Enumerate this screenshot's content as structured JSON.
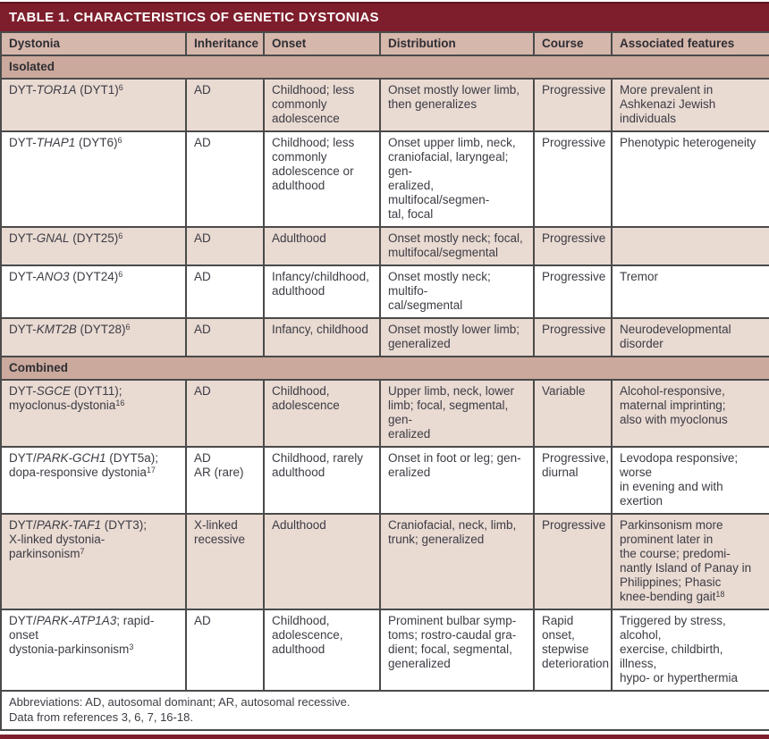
{
  "title": "TABLE 1. CHARACTERISTICS OF GENETIC DYSTONIAS",
  "colors": {
    "title_bg": "#7E1E2C",
    "header_bg": "#D6B7AC",
    "section_bg": "#CBA99C",
    "row_shaded_bg": "#E9DAD2",
    "row_plain_bg": "#FFFFFF",
    "border": "#4A4A4A",
    "text": "#3C3C44"
  },
  "table": {
    "columns": [
      "Dystonia",
      "Inheritance",
      "Onset",
      "Distribution",
      "Course",
      "Associated features"
    ],
    "sections": [
      {
        "label": "Isolated",
        "rows": [
          {
            "name_parts": [
              {
                "t": "DYT-"
              },
              {
                "t": "TOR1A",
                "style": "italic"
              },
              {
                "t": " (DYT1)"
              },
              {
                "t": "6",
                "style": "sup"
              }
            ],
            "inheritance": "AD",
            "onset": "Childhood; less\ncommonly\nadolescence",
            "distribution": "Onset mostly lower limb,\nthen generalizes",
            "course": "Progressive",
            "features": "More prevalent in\nAshkenazi Jewish individuals"
          },
          {
            "name_parts": [
              {
                "t": "DYT-"
              },
              {
                "t": "THAP1",
                "style": "italic"
              },
              {
                "t": " (DYT6)"
              },
              {
                "t": "6",
                "style": "sup"
              }
            ],
            "inheritance": "AD",
            "onset": "Childhood; less\ncommonly\nadolescence or\nadulthood",
            "distribution": "Onset upper limb, neck,\ncraniofacial, laryngeal; gen-\neralized, multifocal/segmen-\ntal, focal",
            "course": "Progressive",
            "features": "Phenotypic heterogeneity"
          },
          {
            "name_parts": [
              {
                "t": "DYT-"
              },
              {
                "t": "GNAL",
                "style": "italic"
              },
              {
                "t": " (DYT25)"
              },
              {
                "t": "6",
                "style": "sup"
              }
            ],
            "inheritance": "AD",
            "onset": "Adulthood",
            "distribution": "Onset mostly neck; focal,\nmultifocal/segmental",
            "course": "Progressive",
            "features": ""
          },
          {
            "name_parts": [
              {
                "t": "DYT-"
              },
              {
                "t": "ANO3",
                "style": "italic"
              },
              {
                "t": " (DYT24)"
              },
              {
                "t": "6",
                "style": "sup"
              }
            ],
            "inheritance": "AD",
            "onset": "Infancy/childhood,\nadulthood",
            "distribution": "Onset mostly neck; multifo-\ncal/segmental",
            "course": "Progressive",
            "features": "Tremor"
          },
          {
            "name_parts": [
              {
                "t": "DYT-"
              },
              {
                "t": "KMT2B",
                "style": "italic"
              },
              {
                "t": " (DYT28)"
              },
              {
                "t": "6",
                "style": "sup"
              }
            ],
            "inheritance": "AD",
            "onset": "Infancy, childhood",
            "distribution": "Onset mostly lower limb;\ngeneralized",
            "course": "Progressive",
            "features": "Neurodevelopmental\ndisorder"
          }
        ]
      },
      {
        "label": "Combined",
        "rows": [
          {
            "name_parts": [
              {
                "t": "DYT-"
              },
              {
                "t": "SGCE",
                "style": "italic"
              },
              {
                "t": " (DYT11);"
              },
              {
                "style": "br"
              },
              {
                "t": "myoclonus-dystonia"
              },
              {
                "t": "16",
                "style": "sup"
              }
            ],
            "inheritance": "AD",
            "onset": "Childhood,\nadolescence",
            "distribution": "Upper limb, neck, lower\nlimb; focal, segmental, gen-\neralized",
            "course": "Variable",
            "features": "Alcohol-responsive,\nmaternal imprinting;\nalso with myoclonus"
          },
          {
            "name_parts": [
              {
                "t": "DYT/"
              },
              {
                "t": "PARK-GCH1",
                "style": "italic"
              },
              {
                "t": " (DYT5a);"
              },
              {
                "style": "br"
              },
              {
                "t": "dopa-responsive dystonia"
              },
              {
                "t": "17",
                "style": "sup"
              }
            ],
            "inheritance": "AD\nAR (rare)",
            "onset": "Childhood, rarely\nadulthood",
            "distribution": "Onset in foot or leg; gen-\neralized",
            "course": "Progressive,\ndiurnal",
            "features": "Levodopa responsive; worse\nin evening and with exertion"
          },
          {
            "name_parts": [
              {
                "t": "DYT/"
              },
              {
                "t": "PARK-TAF1",
                "style": "italic"
              },
              {
                "t": " (DYT3);"
              },
              {
                "style": "br"
              },
              {
                "t": "X-linked dystonia-parkinsonism"
              },
              {
                "t": "7",
                "style": "sup"
              }
            ],
            "inheritance": "X-linked\nrecessive",
            "onset": "Adulthood",
            "distribution": "Craniofacial, neck, limb,\ntrunk; generalized",
            "course": "Progressive",
            "features": "Parkinsonism more\nprominent later in\nthe course; predomi-\nnantly Island of Panay in\nPhilippines; Phasic\nknee-bending gait"
          },
          {
            "name_parts": [
              {
                "t": "DYT/"
              },
              {
                "t": "PARK-ATP1A3",
                "style": "italic"
              },
              {
                "t": "; rapid-onset"
              },
              {
                "style": "br"
              },
              {
                "t": "dystonia-parkinsonism"
              },
              {
                "t": "3",
                "style": "sup"
              }
            ],
            "inheritance": "AD",
            "onset": "Childhood,\nadolescence,\nadulthood",
            "distribution": "Prominent bulbar symp-\ntoms; rostro-caudal gra-\ndient; focal, segmental,\ngeneralized",
            "course": "Rapid onset,\nstepwise\ndeterioration",
            "features": "Triggered by stress, alcohol,\nexercise, childbirth, illness,\nhypo- or hyperthermia"
          }
        ]
      }
    ],
    "features_trailing_sup": {
      "row": "PARK-TAF1",
      "sup": "18"
    }
  },
  "footer": {
    "line1": "Abbreviations: AD, autosomal dominant; AR, autosomal recessive.",
    "line2": "Data from references 3, 6, 7, 16-18."
  }
}
